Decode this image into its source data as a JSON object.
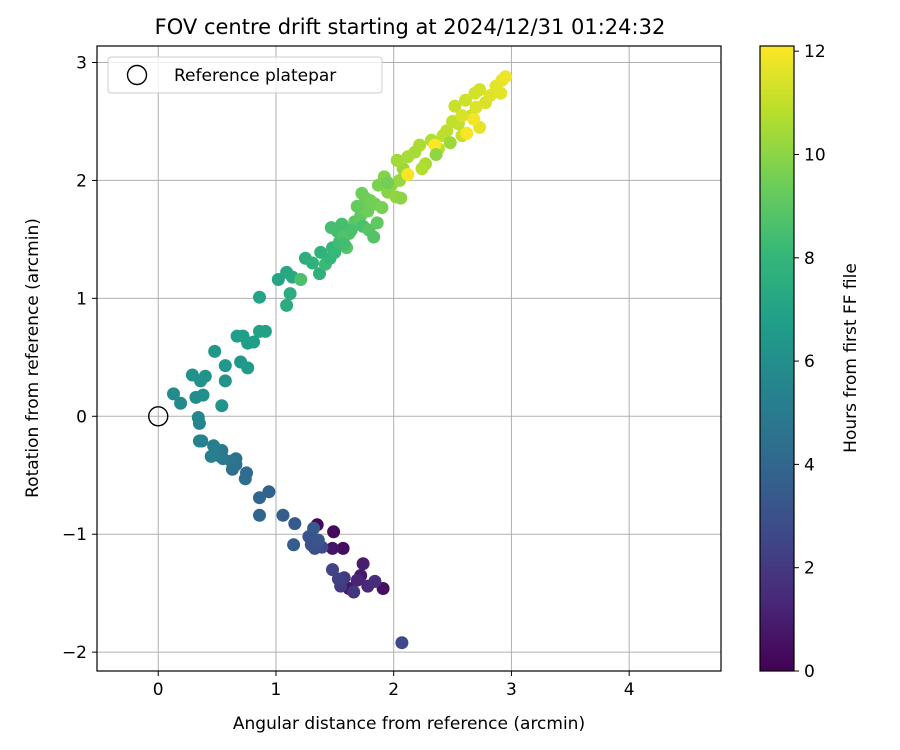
{
  "chart_data": {
    "type": "scatter",
    "title": "FOV centre drift starting at 2024/12/31 01:24:32",
    "xlabel": "Angular distance from reference (arcmin)",
    "ylabel": "Rotation from reference (arcmin)",
    "xlim": [
      -0.52,
      4.78
    ],
    "ylim": [
      -2.16,
      3.14
    ],
    "xticks": [
      0,
      1,
      2,
      3,
      4
    ],
    "xtick_labels": [
      "0",
      "1",
      "2",
      "3",
      "4"
    ],
    "yticks": [
      -2,
      -1,
      0,
      1,
      2,
      3
    ],
    "ytick_labels": [
      "−2",
      "−1",
      "0",
      "1",
      "2",
      "3"
    ],
    "grid": true,
    "legend": {
      "placement": "top-left",
      "entries": [
        "Reference platepar"
      ]
    },
    "reference_point": {
      "name": "Reference platepar",
      "x": 0,
      "y": 0,
      "marker": "open-circle"
    },
    "colorbar": {
      "label": "Hours from first FF file",
      "colormap": "viridis",
      "range": [
        0,
        12.1
      ],
      "ticks": [
        0,
        2,
        4,
        6,
        8,
        10,
        12
      ],
      "tick_labels": [
        "0",
        "2",
        "4",
        "6",
        "8",
        "10",
        "12"
      ]
    },
    "points": [
      [
        1.35,
        -0.92,
        0.2
      ],
      [
        1.49,
        -0.98,
        0.3
      ],
      [
        1.57,
        -1.12,
        0.4
      ],
      [
        1.48,
        -1.12,
        0.6
      ],
      [
        1.62,
        -1.46,
        0.7
      ],
      [
        1.91,
        -1.46,
        0.5
      ],
      [
        1.72,
        -1.35,
        0.9
      ],
      [
        1.74,
        -1.25,
        1.0
      ],
      [
        1.69,
        -1.39,
        1.2
      ],
      [
        1.78,
        -1.44,
        1.4
      ],
      [
        1.84,
        -1.4,
        1.6
      ],
      [
        1.66,
        -1.49,
        1.8
      ],
      [
        1.58,
        -1.37,
        2.0
      ],
      [
        1.55,
        -1.44,
        2.1
      ],
      [
        1.53,
        -1.38,
        2.3
      ],
      [
        1.48,
        -1.3,
        2.4
      ],
      [
        2.07,
        -1.92,
        2.6
      ],
      [
        1.39,
        -1.11,
        2.7
      ],
      [
        1.33,
        -1.12,
        2.9
      ],
      [
        1.3,
        -1.09,
        3.0
      ],
      [
        1.28,
        -1.02,
        3.1
      ],
      [
        1.36,
        -1.05,
        3.2
      ],
      [
        1.32,
        -0.95,
        3.3
      ],
      [
        1.16,
        -0.91,
        3.4
      ],
      [
        1.15,
        -1.09,
        3.5
      ],
      [
        1.06,
        -0.84,
        3.6
      ],
      [
        0.94,
        -0.64,
        3.8
      ],
      [
        0.86,
        -0.84,
        3.9
      ],
      [
        0.86,
        -0.69,
        4.0
      ],
      [
        0.75,
        -0.48,
        4.2
      ],
      [
        0.74,
        -0.53,
        4.3
      ],
      [
        0.66,
        -0.41,
        4.4
      ],
      [
        0.63,
        -0.45,
        4.5
      ],
      [
        0.66,
        -0.36,
        4.6
      ],
      [
        0.62,
        -0.38,
        4.7
      ],
      [
        0.54,
        -0.29,
        4.8
      ],
      [
        0.55,
        -0.36,
        4.9
      ],
      [
        0.5,
        -0.33,
        5.0
      ],
      [
        0.47,
        -0.25,
        5.1
      ],
      [
        0.45,
        -0.34,
        5.2
      ],
      [
        0.37,
        -0.21,
        5.3
      ],
      [
        0.35,
        -0.21,
        5.4
      ],
      [
        0.35,
        -0.06,
        5.5
      ],
      [
        0.34,
        -0.01,
        5.6
      ],
      [
        0.19,
        0.11,
        5.7
      ],
      [
        0.13,
        0.19,
        5.8
      ],
      [
        0.32,
        0.16,
        5.9
      ],
      [
        0.38,
        0.18,
        6.0
      ],
      [
        0.29,
        0.35,
        6.1
      ],
      [
        0.36,
        0.3,
        6.1
      ],
      [
        0.4,
        0.34,
        6.2
      ],
      [
        0.54,
        0.09,
        6.3
      ],
      [
        0.57,
        0.3,
        6.3
      ],
      [
        0.48,
        0.55,
        6.4
      ],
      [
        0.57,
        0.43,
        6.5
      ],
      [
        0.7,
        0.46,
        6.5
      ],
      [
        0.76,
        0.41,
        6.6
      ],
      [
        0.67,
        0.68,
        6.7
      ],
      [
        0.72,
        0.68,
        6.7
      ],
      [
        0.76,
        0.62,
        6.8
      ],
      [
        0.81,
        0.63,
        6.8
      ],
      [
        0.86,
        0.72,
        6.9
      ],
      [
        0.91,
        0.72,
        6.9
      ],
      [
        0.86,
        1.01,
        7.0
      ],
      [
        1.02,
        1.16,
        7.1
      ],
      [
        1.09,
        1.22,
        7.2
      ],
      [
        1.14,
        1.18,
        7.3
      ],
      [
        1.09,
        0.94,
        7.4
      ],
      [
        1.12,
        1.04,
        7.5
      ],
      [
        1.21,
        1.16,
        8.6
      ],
      [
        1.25,
        1.34,
        7.6
      ],
      [
        1.31,
        1.3,
        7.7
      ],
      [
        1.37,
        1.21,
        7.7
      ],
      [
        1.38,
        1.39,
        7.8
      ],
      [
        1.42,
        1.29,
        8.2
      ],
      [
        1.46,
        1.34,
        7.9
      ],
      [
        1.48,
        1.43,
        8.0
      ],
      [
        1.5,
        1.39,
        8.1
      ],
      [
        1.54,
        1.48,
        8.3
      ],
      [
        1.52,
        1.57,
        8.4
      ],
      [
        1.47,
        1.6,
        8.5
      ],
      [
        1.57,
        1.53,
        8.7
      ],
      [
        1.62,
        1.55,
        8.8
      ],
      [
        1.6,
        1.43,
        8.9
      ],
      [
        1.67,
        1.65,
        9.0
      ],
      [
        1.72,
        1.7,
        9.1
      ],
      [
        1.74,
        1.61,
        8.6
      ],
      [
        1.79,
        1.58,
        8.9
      ],
      [
        1.83,
        1.52,
        8.8
      ],
      [
        1.86,
        1.64,
        9.1
      ],
      [
        1.71,
        1.77,
        9.2
      ],
      [
        1.76,
        1.85,
        9.3
      ],
      [
        1.78,
        1.74,
        9.4
      ],
      [
        1.84,
        1.8,
        9.5
      ],
      [
        1.9,
        1.77,
        9.6
      ],
      [
        1.73,
        1.89,
        9.4
      ],
      [
        1.87,
        1.96,
        9.7
      ],
      [
        1.92,
        2.03,
        9.8
      ],
      [
        1.95,
        1.9,
        9.9
      ],
      [
        1.98,
        1.96,
        10.0
      ],
      [
        2.02,
        1.86,
        10.1
      ],
      [
        2.05,
        2.0,
        10.2
      ],
      [
        2.08,
        2.1,
        10.3
      ],
      [
        2.03,
        2.17,
        10.4
      ],
      [
        2.12,
        2.2,
        10.5
      ],
      [
        2.18,
        2.24,
        10.5
      ],
      [
        2.22,
        2.3,
        10.6
      ],
      [
        2.27,
        2.14,
        10.6
      ],
      [
        2.24,
        2.1,
        10.7
      ],
      [
        2.32,
        2.34,
        10.7
      ],
      [
        2.38,
        2.27,
        10.8
      ],
      [
        2.42,
        2.38,
        10.9
      ],
      [
        2.45,
        2.42,
        10.9
      ],
      [
        2.5,
        2.5,
        11.0
      ],
      [
        2.55,
        2.48,
        11.0
      ],
      [
        2.58,
        2.38,
        11.1
      ],
      [
        2.52,
        2.63,
        11.1
      ],
      [
        2.61,
        2.68,
        11.2
      ],
      [
        2.66,
        2.55,
        11.2
      ],
      [
        2.69,
        2.74,
        11.3
      ],
      [
        2.73,
        2.77,
        11.3
      ],
      [
        2.78,
        2.66,
        11.4
      ],
      [
        2.82,
        2.72,
        11.5
      ],
      [
        2.87,
        2.8,
        11.6
      ],
      [
        2.92,
        2.85,
        11.7
      ],
      [
        2.95,
        2.88,
        11.8
      ],
      [
        2.91,
        2.74,
        11.6
      ],
      [
        2.73,
        2.45,
        11.7
      ],
      [
        2.68,
        2.52,
        11.9
      ],
      [
        2.62,
        2.4,
        12.0
      ],
      [
        2.35,
        2.3,
        12.1
      ],
      [
        2.12,
        2.05,
        12.0
      ],
      [
        2.48,
        2.32,
        10.3
      ],
      [
        2.36,
        2.22,
        10.1
      ],
      [
        1.95,
        1.98,
        9.5
      ],
      [
        2.58,
        2.55,
        11.4
      ],
      [
        2.7,
        2.62,
        11.5
      ],
      [
        2.06,
        1.85,
        10.0
      ],
      [
        1.64,
        1.58,
        8.6
      ],
      [
        1.58,
        1.46,
        8.4
      ],
      [
        1.69,
        1.78,
        9.2
      ],
      [
        1.8,
        1.83,
        9.5
      ],
      [
        1.56,
        1.63,
        8.5
      ]
    ]
  }
}
